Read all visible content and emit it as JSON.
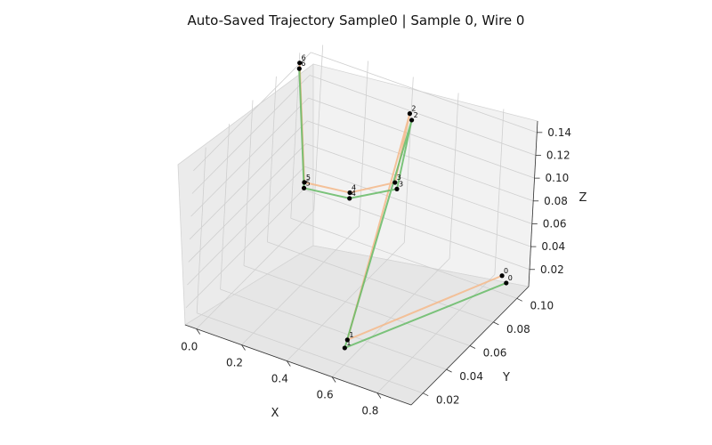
{
  "chart_data": {
    "type": "line3d",
    "title": "Auto-Saved Trajectory Sample0 | Sample 0, Wire 0",
    "xlabel": "X",
    "ylabel": "Y",
    "zlabel": "Z",
    "xlim": [
      -0.05,
      0.95
    ],
    "ylim": [
      0.01,
      0.11
    ],
    "zlim": [
      0.005,
      0.15
    ],
    "x_ticks": [
      {
        "v": 0.0,
        "label": "0.0"
      },
      {
        "v": 0.2,
        "label": "0.2"
      },
      {
        "v": 0.4,
        "label": "0.4"
      },
      {
        "v": 0.6,
        "label": "0.6"
      },
      {
        "v": 0.8,
        "label": "0.8"
      }
    ],
    "y_ticks": [
      {
        "v": 0.02,
        "label": "0.02"
      },
      {
        "v": 0.04,
        "label": "0.04"
      },
      {
        "v": 0.06,
        "label": "0.06"
      },
      {
        "v": 0.08,
        "label": "0.08"
      },
      {
        "v": 0.1,
        "label": "0.10"
      }
    ],
    "z_ticks": [
      {
        "v": 0.02,
        "label": "0.02"
      },
      {
        "v": 0.04,
        "label": "0.04"
      },
      {
        "v": 0.06,
        "label": "0.06"
      },
      {
        "v": 0.08,
        "label": "0.08"
      },
      {
        "v": 0.1,
        "label": "0.10"
      },
      {
        "v": 0.12,
        "label": "0.12"
      },
      {
        "v": 0.14,
        "label": "0.14"
      }
    ],
    "grid": true,
    "series": [
      {
        "color": "#66bb66",
        "points": [
          {
            "label": "0",
            "x": 0.9,
            "y": 0.1,
            "z": 0.015
          },
          {
            "label": "1",
            "x": 0.6,
            "y": 0.02,
            "z": 0.02
          },
          {
            "label": "2",
            "x": 0.5,
            "y": 0.09,
            "z": 0.14
          },
          {
            "label": "3",
            "x": 0.5,
            "y": 0.08,
            "z": 0.09
          },
          {
            "label": "4",
            "x": 0.2,
            "y": 0.1,
            "z": 0.04
          },
          {
            "label": "5",
            "x": 0.0,
            "y": 0.1,
            "z": 0.035
          },
          {
            "label": "6",
            "x": 0.0,
            "y": 0.09,
            "z": 0.15
          }
        ]
      },
      {
        "color": "#f5b88a",
        "points": [
          {
            "label": "0",
            "x": 0.88,
            "y": 0.1,
            "z": 0.02
          },
          {
            "label": "1",
            "x": 0.6,
            "y": 0.022,
            "z": 0.025
          },
          {
            "label": "2",
            "x": 0.49,
            "y": 0.09,
            "z": 0.145
          },
          {
            "label": "3",
            "x": 0.49,
            "y": 0.08,
            "z": 0.095
          },
          {
            "label": "4",
            "x": 0.2,
            "y": 0.1,
            "z": 0.045
          },
          {
            "label": "5",
            "x": 0.0,
            "y": 0.1,
            "z": 0.04
          },
          {
            "label": "6",
            "x": 0.0,
            "y": 0.09,
            "z": 0.155
          }
        ]
      }
    ]
  }
}
